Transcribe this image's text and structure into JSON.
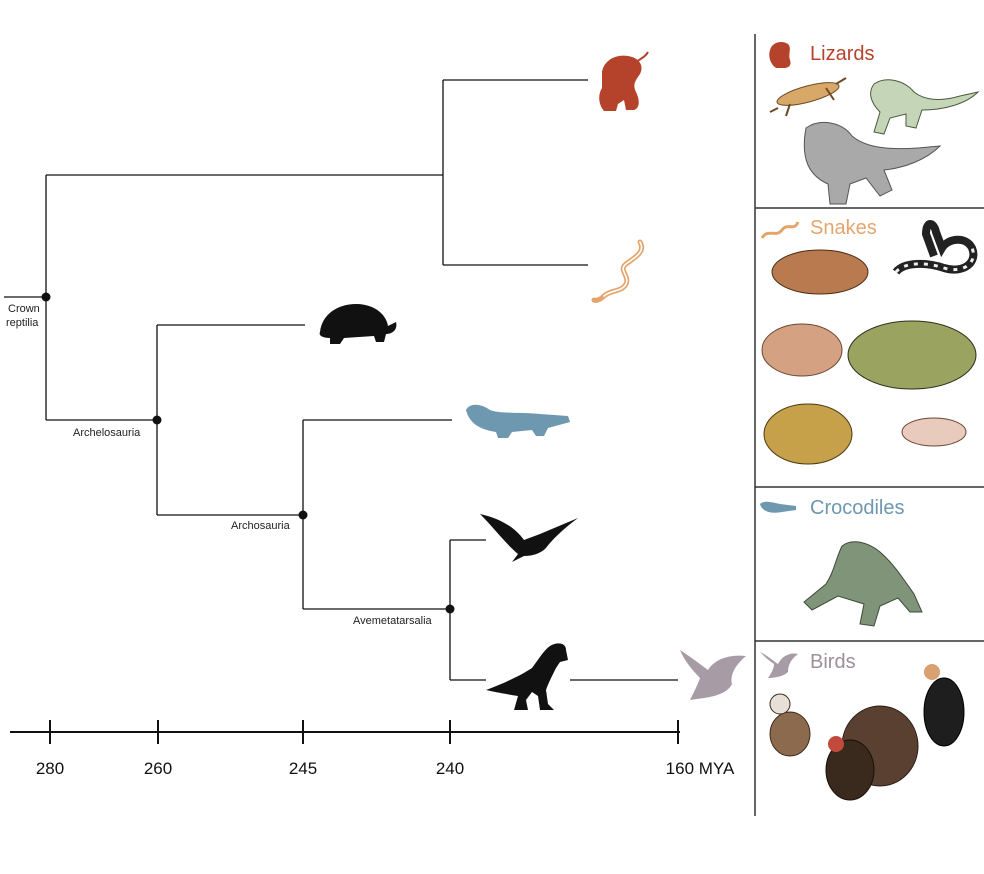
{
  "tree": {
    "nodes": {
      "crown_reptilia": "Crown\nreptilia",
      "archelosauria": "Archelosauria",
      "archosauria": "Archosauria",
      "avemetatarsalia": "Avemetatarsalia"
    }
  },
  "timeline": {
    "ticks": [
      "280",
      "260",
      "245",
      "240",
      "160 MYA"
    ]
  },
  "panels": [
    {
      "label": "Lizards",
      "color": "#b5432b",
      "icon": "lizard-icon"
    },
    {
      "label": "Snakes",
      "color": "#e3a56b",
      "icon": "snake-icon"
    },
    {
      "label": "Crocodiles",
      "color": "#6e97b0",
      "icon": "crocodile-icon"
    },
    {
      "label": "Birds",
      "color": "#9c9099",
      "icon": "bird-icon"
    }
  ],
  "silhouette_colors": {
    "lizard": "#b5432b",
    "snake": "#e3a56b",
    "turtle": "#111111",
    "crocodile": "#6e97b0",
    "pterosaur": "#111111",
    "dinosaur": "#111111",
    "bird": "#a79ca6"
  }
}
